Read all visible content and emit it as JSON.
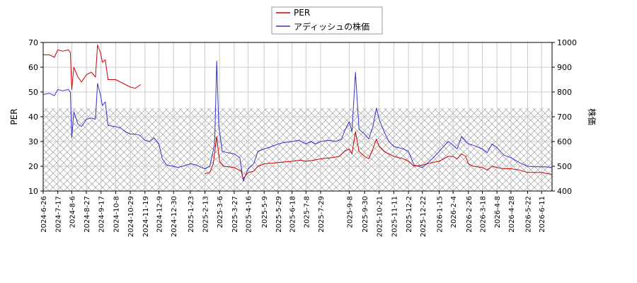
{
  "chart_data": {
    "type": "line",
    "legend": {
      "placement": "top-center",
      "entries": [
        {
          "label": "PER",
          "color": "#cc0000"
        },
        {
          "label": "アディッシュの株価",
          "color": "#3333cc"
        }
      ]
    },
    "ylabel_left": "PER",
    "ylabel_right": "株価",
    "ylim_left": [
      10,
      70
    ],
    "ylim_right": [
      400,
      1000
    ],
    "yticks_left": [
      "10",
      "20",
      "30",
      "40",
      "50",
      "60",
      "70"
    ],
    "yticks_right": [
      "400",
      "500",
      "600",
      "700",
      "800",
      "900",
      "1000"
    ],
    "xlim": [
      "2024-06-26",
      "2026-06-26"
    ],
    "xtick_labels": [
      "2024-6-26",
      "2024-7-17",
      "2024-8-6",
      "2024-8-27",
      "2024-9-17",
      "2024-10-8",
      "2024-10-29",
      "2024-11-19",
      "2024-12-9",
      "2024-12-30",
      "2025-1-23",
      "2025-2-13",
      "2025-3-6",
      "2025-3-27",
      "2025-4-16",
      "2025-5-9",
      "2025-5-29",
      "2025-6-18",
      "2025-7-8",
      "2025-7-29",
      "2025-9-8",
      "2025-9-30",
      "2025-10-21",
      "2025-11-11",
      "2025-12-2",
      "2025-12-22",
      "2026-1-15",
      "2026-2-4",
      "2026-2-26",
      "2026-3-18",
      "2026-4-8",
      "2026-4-28",
      "2026-5-22",
      "2026-6-11"
    ],
    "grid": true,
    "hatched_band_left_units": [
      10,
      43.5
    ],
    "series": [
      {
        "name": "PER",
        "axis": "left",
        "color": "#cc0000",
        "segments": [
          [
            [
              "2024-06-26",
              65
            ],
            [
              "2024-07-05",
              65
            ],
            [
              "2024-07-12",
              64
            ],
            [
              "2024-07-17",
              67
            ],
            [
              "2024-07-24",
              66.5
            ],
            [
              "2024-08-01",
              67
            ],
            [
              "2024-08-04",
              66
            ],
            [
              "2024-08-06",
              51
            ],
            [
              "2024-08-09",
              60
            ],
            [
              "2024-08-15",
              56
            ],
            [
              "2024-08-20",
              54
            ],
            [
              "2024-08-27",
              57
            ],
            [
              "2024-09-03",
              58
            ],
            [
              "2024-09-09",
              56
            ],
            [
              "2024-09-12",
              69
            ],
            [
              "2024-09-16",
              66
            ],
            [
              "2024-09-19",
              62
            ],
            [
              "2024-09-23",
              63
            ],
            [
              "2024-09-27",
              55
            ],
            [
              "2024-10-08",
              55
            ],
            [
              "2024-10-15",
              54
            ],
            [
              "2024-10-22",
              53
            ],
            [
              "2024-10-29",
              52
            ],
            [
              "2024-11-05",
              51.5
            ],
            [
              "2024-11-13",
              53
            ]
          ],
          [
            [
              "2025-02-13",
              17
            ],
            [
              "2025-02-20",
              17.5
            ],
            [
              "2025-02-25",
              21
            ],
            [
              "2025-03-02",
              32
            ],
            [
              "2025-03-06",
              22
            ],
            [
              "2025-03-12",
              20
            ],
            [
              "2025-03-27",
              19.5
            ],
            [
              "2025-04-06",
              18
            ],
            [
              "2025-04-09",
              15
            ],
            [
              "2025-04-16",
              17.5
            ],
            [
              "2025-04-24",
              18
            ],
            [
              "2025-04-30",
              20
            ],
            [
              "2025-05-09",
              21
            ],
            [
              "2025-05-29",
              21.5
            ],
            [
              "2025-06-18",
              22
            ],
            [
              "2025-06-30",
              22.5
            ],
            [
              "2025-07-08",
              22
            ],
            [
              "2025-07-20",
              22.5
            ],
            [
              "2025-07-29",
              23
            ],
            [
              "2025-08-15",
              23.5
            ],
            [
              "2025-08-25",
              24
            ],
            [
              "2025-09-01",
              26
            ],
            [
              "2025-09-08",
              27
            ],
            [
              "2025-09-12",
              25
            ],
            [
              "2025-09-17",
              34
            ],
            [
              "2025-09-22",
              26
            ],
            [
              "2025-09-30",
              24
            ],
            [
              "2025-10-06",
              23
            ],
            [
              "2025-10-12",
              27
            ],
            [
              "2025-10-17",
              31
            ],
            [
              "2025-10-21",
              28
            ],
            [
              "2025-10-28",
              26
            ],
            [
              "2025-11-04",
              25
            ],
            [
              "2025-11-11",
              24
            ],
            [
              "2025-11-25",
              23
            ],
            [
              "2025-12-02",
              22
            ],
            [
              "2025-12-10",
              20
            ],
            [
              "2025-12-22",
              20.5
            ],
            [
              "2026-01-05",
              21.5
            ],
            [
              "2026-01-15",
              22
            ],
            [
              "2026-01-28",
              24
            ],
            [
              "2026-02-04",
              24
            ],
            [
              "2026-02-10",
              23
            ],
            [
              "2026-02-16",
              25
            ],
            [
              "2026-02-22",
              24
            ],
            [
              "2026-02-26",
              21
            ],
            [
              "2026-03-05",
              20
            ],
            [
              "2026-03-18",
              19.5
            ],
            [
              "2026-03-25",
              18.5
            ],
            [
              "2026-04-01",
              20
            ],
            [
              "2026-04-08",
              19.5
            ],
            [
              "2026-04-18",
              19
            ],
            [
              "2026-04-28",
              19
            ],
            [
              "2026-05-10",
              18.5
            ],
            [
              "2026-05-22",
              17.5
            ],
            [
              "2026-06-01",
              17.5
            ],
            [
              "2026-06-11",
              17.5
            ],
            [
              "2026-06-20",
              17
            ],
            [
              "2026-06-26",
              16.8
            ]
          ]
        ]
      },
      {
        "name": "アディッシュの株価",
        "axis": "right",
        "color": "#3333cc",
        "segments": [
          [
            [
              "2024-06-26",
              790
            ],
            [
              "2024-07-05",
              795
            ],
            [
              "2024-07-12",
              785
            ],
            [
              "2024-07-17",
              810
            ],
            [
              "2024-07-24",
              805
            ],
            [
              "2024-08-01",
              810
            ],
            [
              "2024-08-04",
              800
            ],
            [
              "2024-08-06",
              615
            ],
            [
              "2024-08-09",
              720
            ],
            [
              "2024-08-15",
              670
            ],
            [
              "2024-08-20",
              660
            ],
            [
              "2024-08-27",
              690
            ],
            [
              "2024-09-03",
              695
            ],
            [
              "2024-09-09",
              690
            ],
            [
              "2024-09-12",
              835
            ],
            [
              "2024-09-16",
              790
            ],
            [
              "2024-09-19",
              745
            ],
            [
              "2024-09-23",
              760
            ],
            [
              "2024-09-27",
              665
            ],
            [
              "2024-10-08",
              660
            ],
            [
              "2024-10-15",
              655
            ],
            [
              "2024-10-22",
              640
            ],
            [
              "2024-10-29",
              630
            ],
            [
              "2024-11-05",
              630
            ],
            [
              "2024-11-12",
              625
            ],
            [
              "2024-11-19",
              605
            ],
            [
              "2024-11-26",
              600
            ],
            [
              "2024-12-02",
              615
            ],
            [
              "2024-12-09",
              590
            ],
            [
              "2024-12-14",
              530
            ],
            [
              "2024-12-20",
              505
            ],
            [
              "2024-12-30",
              500
            ],
            [
              "2025-01-05",
              495
            ],
            [
              "2025-01-12",
              500
            ],
            [
              "2025-01-23",
              510
            ],
            [
              "2025-02-01",
              505
            ],
            [
              "2025-02-08",
              495
            ],
            [
              "2025-02-13",
              490
            ],
            [
              "2025-02-20",
              500
            ],
            [
              "2025-02-27",
              590
            ],
            [
              "2025-03-02",
              925
            ],
            [
              "2025-03-05",
              660
            ],
            [
              "2025-03-10",
              560
            ],
            [
              "2025-03-18",
              555
            ],
            [
              "2025-03-27",
              550
            ],
            [
              "2025-04-04",
              535
            ],
            [
              "2025-04-09",
              440
            ],
            [
              "2025-04-16",
              490
            ],
            [
              "2025-04-24",
              510
            ],
            [
              "2025-04-30",
              560
            ],
            [
              "2025-05-09",
              570
            ],
            [
              "2025-05-20",
              580
            ],
            [
              "2025-05-29",
              590
            ],
            [
              "2025-06-05",
              595
            ],
            [
              "2025-06-18",
              600
            ],
            [
              "2025-06-28",
              605
            ],
            [
              "2025-07-08",
              590
            ],
            [
              "2025-07-15",
              600
            ],
            [
              "2025-07-22",
              590
            ],
            [
              "2025-07-29",
              600
            ],
            [
              "2025-08-10",
              605
            ],
            [
              "2025-08-20",
              600
            ],
            [
              "2025-08-28",
              610
            ],
            [
              "2025-09-01",
              640
            ],
            [
              "2025-09-08",
              680
            ],
            [
              "2025-09-12",
              640
            ],
            [
              "2025-09-17",
              880
            ],
            [
              "2025-09-22",
              650
            ],
            [
              "2025-09-30",
              630
            ],
            [
              "2025-10-06",
              610
            ],
            [
              "2025-10-12",
              660
            ],
            [
              "2025-10-17",
              735
            ],
            [
              "2025-10-21",
              690
            ],
            [
              "2025-10-28",
              640
            ],
            [
              "2025-11-04",
              600
            ],
            [
              "2025-11-11",
              580
            ],
            [
              "2025-11-25",
              570
            ],
            [
              "2025-12-02",
              560
            ],
            [
              "2025-12-10",
              505
            ],
            [
              "2025-12-22",
              495
            ],
            [
              "2026-01-05",
              530
            ],
            [
              "2026-01-15",
              560
            ],
            [
              "2026-01-28",
              600
            ],
            [
              "2026-02-04",
              585
            ],
            [
              "2026-02-10",
              570
            ],
            [
              "2026-02-16",
              620
            ],
            [
              "2026-02-22",
              600
            ],
            [
              "2026-02-26",
              590
            ],
            [
              "2026-03-05",
              585
            ],
            [
              "2026-03-18",
              570
            ],
            [
              "2026-03-25",
              555
            ],
            [
              "2026-04-01",
              590
            ],
            [
              "2026-04-08",
              575
            ],
            [
              "2026-04-18",
              545
            ],
            [
              "2026-04-28",
              535
            ],
            [
              "2026-05-10",
              515
            ],
            [
              "2026-05-22",
              500
            ],
            [
              "2026-06-01",
              498
            ],
            [
              "2026-06-11",
              498
            ],
            [
              "2026-06-20",
              497
            ],
            [
              "2026-06-26",
              495
            ]
          ]
        ]
      }
    ]
  }
}
